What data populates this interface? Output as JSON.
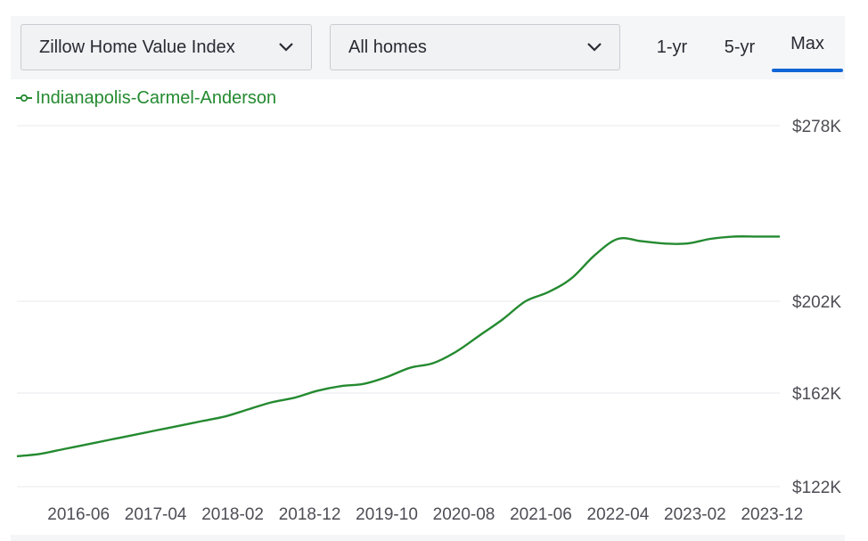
{
  "controls": {
    "metric_select": "Zillow Home Value Index",
    "home_type_select": "All homes",
    "tabs": [
      "1-yr",
      "5-yr",
      "Max"
    ],
    "active_tab": "Max",
    "accent_color": "#1265d6"
  },
  "chart_data": {
    "type": "line",
    "title": "",
    "xlabel": "",
    "ylabel": "",
    "x_tick_labels": [
      "2016-06",
      "2017-04",
      "2018-02",
      "2018-12",
      "2019-10",
      "2020-08",
      "2021-06",
      "2022-04",
      "2023-02",
      "2023-12"
    ],
    "y_tick_labels": [
      "$278K",
      "$202K",
      "$162K",
      "$122K"
    ],
    "y_tick_values": [
      278,
      202,
      162,
      122
    ],
    "ylim": [
      122,
      278
    ],
    "y_unit": "thousands USD",
    "grid": true,
    "legend_position": "top-left",
    "series": [
      {
        "name": "Indianapolis-Carmel-Anderson",
        "color": "#248a30",
        "x": [
          "2015-10",
          "2016-01",
          "2016-04",
          "2016-07",
          "2016-10",
          "2017-01",
          "2017-04",
          "2017-07",
          "2017-10",
          "2018-01",
          "2018-04",
          "2018-07",
          "2018-10",
          "2019-01",
          "2019-04",
          "2019-07",
          "2019-10",
          "2020-01",
          "2020-04",
          "2020-07",
          "2020-10",
          "2021-01",
          "2021-04",
          "2021-07",
          "2021-10",
          "2022-01",
          "2022-04",
          "2022-07",
          "2022-10",
          "2023-01",
          "2023-04",
          "2023-07",
          "2023-10",
          "2024-01"
        ],
        "y": [
          135,
          136,
          138,
          140,
          142,
          144,
          146,
          148,
          150,
          152,
          155,
          158,
          160,
          163,
          165,
          166,
          169,
          173,
          175,
          180,
          187,
          194,
          202,
          206,
          212,
          222,
          229,
          228,
          227,
          227,
          229,
          230,
          230,
          230
        ]
      }
    ]
  }
}
